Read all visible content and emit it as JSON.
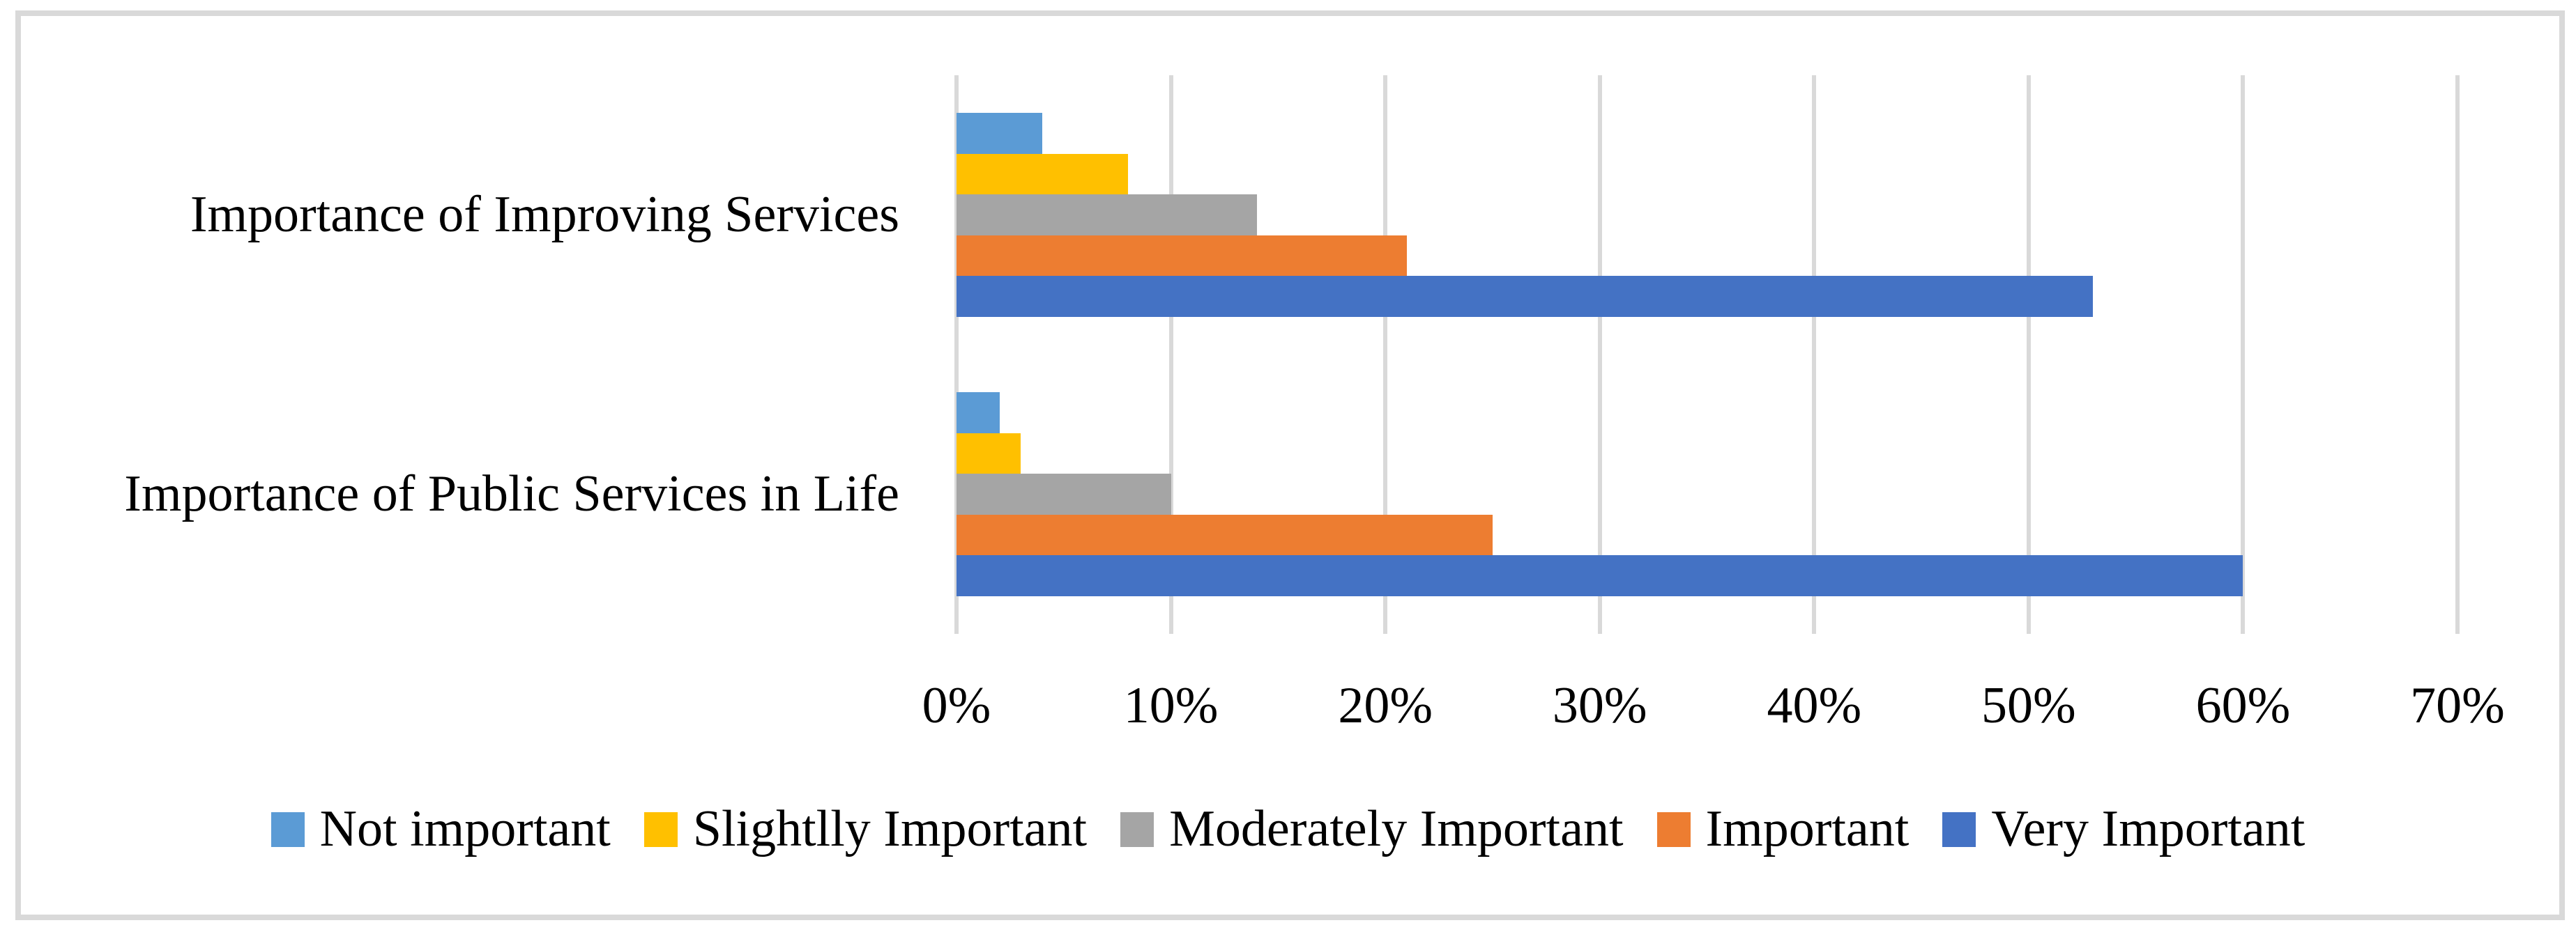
{
  "chart_data": {
    "type": "bar",
    "orientation": "horizontal",
    "categories": [
      "Importance of Improving Services",
      "Importance of Public Services in Life"
    ],
    "series": [
      {
        "name": "Not important",
        "color": "#5B9BD5",
        "values": [
          4,
          2
        ]
      },
      {
        "name": "Slightlly Important",
        "color": "#FFC000",
        "values": [
          8,
          3
        ]
      },
      {
        "name": "Moderately Important",
        "color": "#A5A5A5",
        "values": [
          14,
          10
        ]
      },
      {
        "name": "Important",
        "color": "#ED7D31",
        "values": [
          21,
          25
        ]
      },
      {
        "name": "Very Important",
        "color": "#4472C4",
        "values": [
          53,
          60
        ]
      }
    ],
    "x_axis": {
      "tick_labels": [
        "0%",
        "10%",
        "20%",
        "30%",
        "40%",
        "50%",
        "60%",
        "70%"
      ],
      "min": 0,
      "max": 70,
      "unit": "%"
    },
    "legend_position": "bottom",
    "grid": true,
    "style": {
      "background": "#FFFFFF",
      "frame_border_color": "#D9D9D9",
      "gridline_color": "#D9D9D9",
      "text_color": "#000000"
    }
  }
}
